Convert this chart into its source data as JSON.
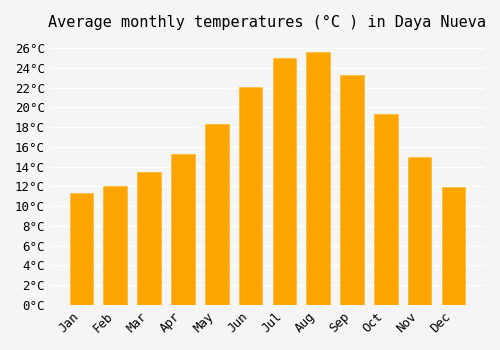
{
  "title": "Average monthly temperatures (°C ) in Daya Nueva",
  "months": [
    "Jan",
    "Feb",
    "Mar",
    "Apr",
    "May",
    "Jun",
    "Jul",
    "Aug",
    "Sep",
    "Oct",
    "Nov",
    "Dec"
  ],
  "values": [
    11.3,
    12.0,
    13.5,
    15.3,
    18.3,
    22.1,
    25.0,
    25.6,
    23.3,
    19.3,
    15.0,
    11.9
  ],
  "bar_color": "#FFA500",
  "bar_edge_color": "#FFB733",
  "ylim": [
    0,
    27
  ],
  "yticks": [
    0,
    2,
    4,
    6,
    8,
    10,
    12,
    14,
    16,
    18,
    20,
    22,
    24,
    26
  ],
  "background_color": "#f5f5f5",
  "grid_color": "#ffffff",
  "title_fontsize": 11,
  "tick_fontsize": 9,
  "font_family": "monospace"
}
